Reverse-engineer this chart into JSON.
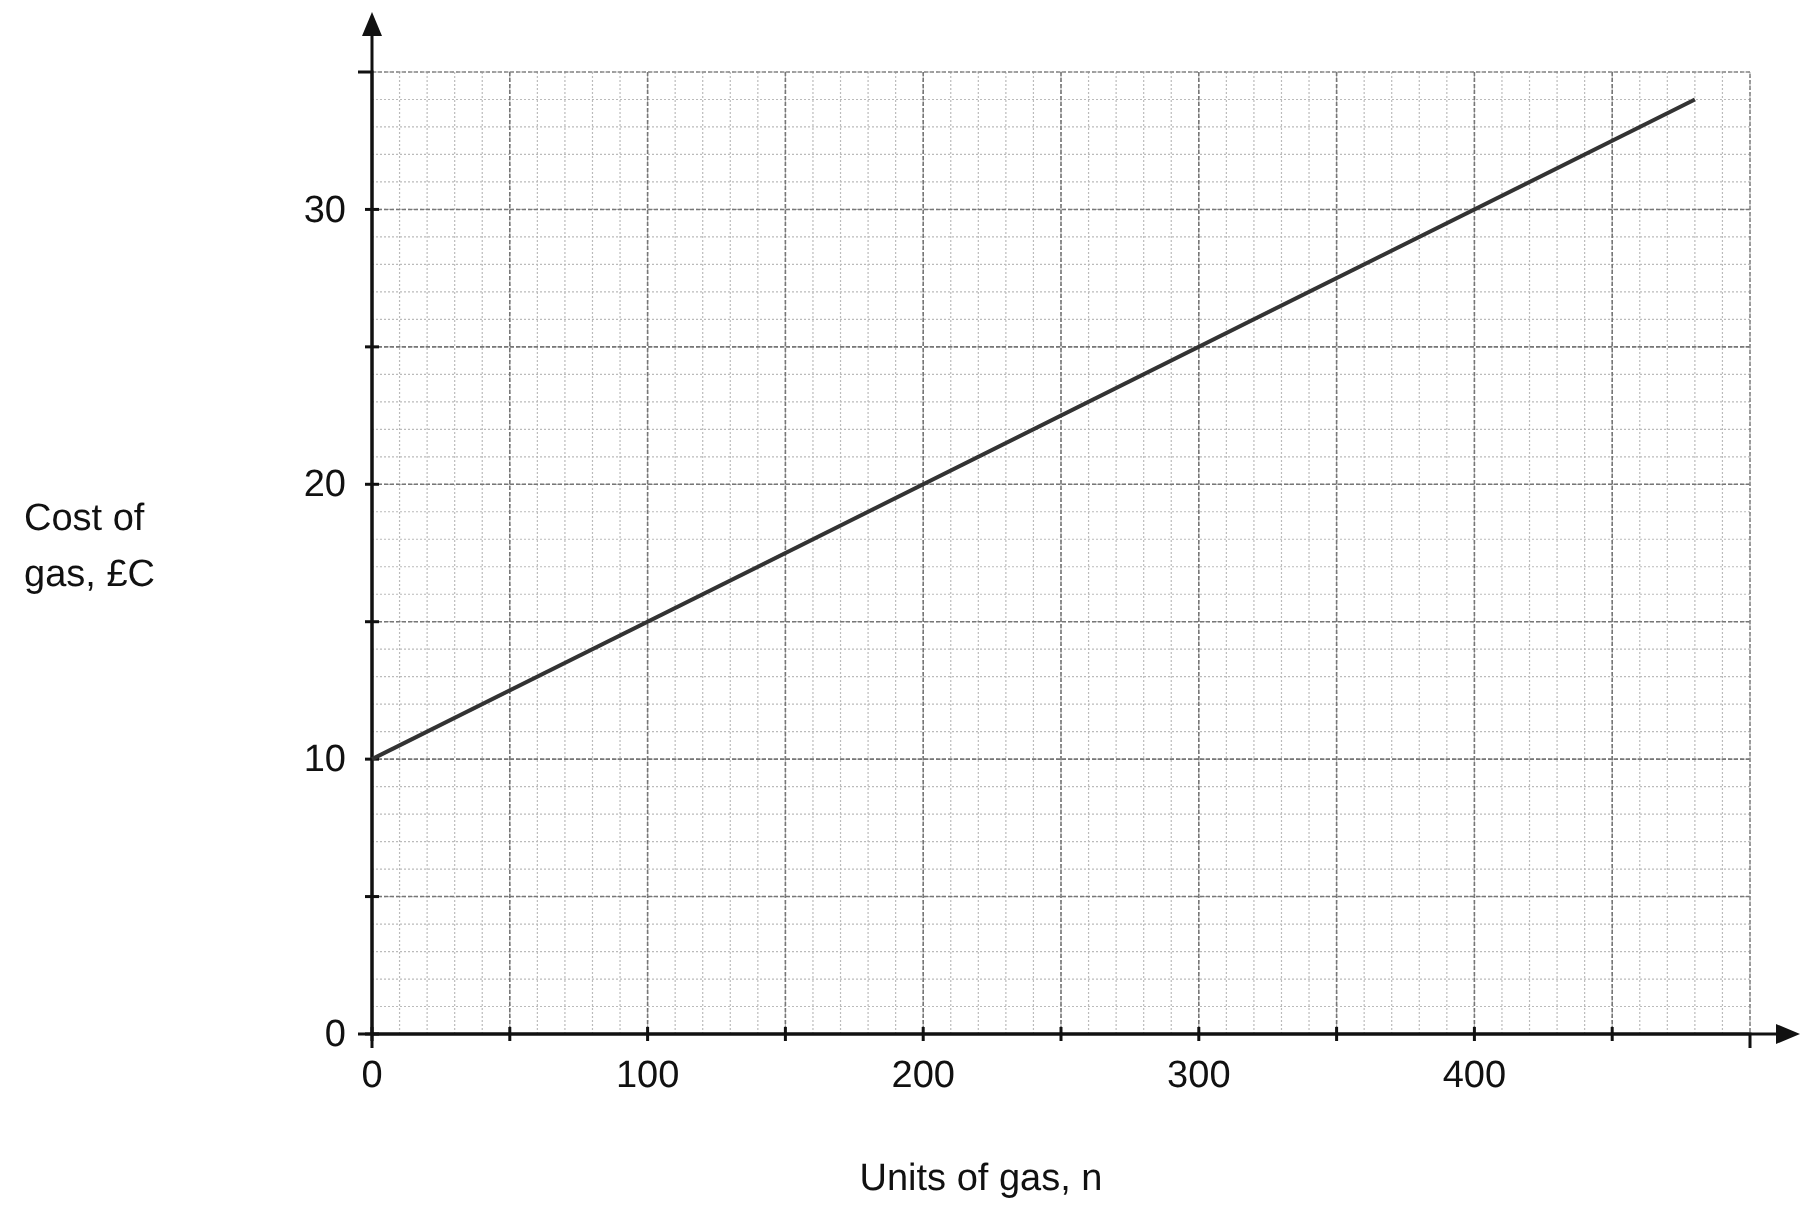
{
  "chart_data": {
    "type": "line",
    "xlabel": "Units of gas, n",
    "ylabel": "Cost of gas, £C",
    "x": [
      0,
      480
    ],
    "series": [
      {
        "color": "#333333",
        "values": [
          10,
          34
        ]
      }
    ],
    "xlim": [
      0,
      500
    ],
    "ylim": [
      0,
      35
    ],
    "xticks": [
      0,
      {
        "value": 50,
        "label": null
      },
      100,
      {
        "value": 150,
        "label": null
      },
      200,
      {
        "value": 250,
        "label": null
      },
      300,
      {
        "value": 350,
        "label": null
      },
      400,
      {
        "value": 450,
        "label": null
      }
    ],
    "yticks": [
      0,
      {
        "value": 5,
        "label": null
      },
      10,
      {
        "value": 15,
        "label": null
      },
      20,
      {
        "value": 25,
        "label": null
      },
      30
    ],
    "grid": true,
    "marker": "none",
    "line_style": "solid"
  }
}
